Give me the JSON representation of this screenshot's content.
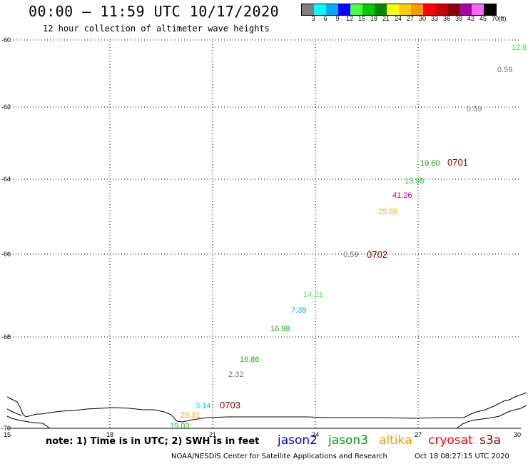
{
  "header": {
    "title": "00:00 – 11:59 UTC 10/17/2020",
    "subtitle": "12 hour collection of altimeter wave heights"
  },
  "colorbar": {
    "unit": "(ft)",
    "ticks": [
      "3",
      "6",
      "9",
      "12",
      "15",
      "18",
      "21",
      "24",
      "27",
      "30",
      "33",
      "36",
      "39",
      "42",
      "45",
      "70"
    ],
    "colors": [
      "#7f7f7f",
      "#00ffff",
      "#00aaff",
      "#0000ff",
      "#44ff44",
      "#00cc00",
      "#008800",
      "#ffff00",
      "#ffcc00",
      "#ff9900",
      "#ff0000",
      "#cc0000",
      "#880000",
      "#aa00aa",
      "#ff66ff",
      "#000000"
    ]
  },
  "map": {
    "lon_range": [
      15,
      30
    ],
    "lat_range": [
      -70,
      -60
    ],
    "lon_ticks": [
      "15",
      "18",
      "21",
      "24",
      "27",
      "30"
    ],
    "lat_ticks": [
      "-60",
      "-62",
      "-64",
      "-66",
      "-68",
      "-70"
    ],
    "grid": "dotted"
  },
  "observations": [
    {
      "value": "12.8",
      "color": "#44dd44"
    },
    {
      "value": "0.59",
      "color": "#777777"
    },
    {
      "value": "0.59",
      "color": "#777777"
    },
    {
      "value": "19.60",
      "color": "#119911"
    },
    {
      "value": "15.98",
      "color": "#22bb22"
    },
    {
      "value": "41.26",
      "color": "#aa00aa"
    },
    {
      "value": "25.89",
      "color": "#ffbb00"
    },
    {
      "value": "0.59",
      "color": "#777777"
    },
    {
      "value": "14.21",
      "color": "#55ee55"
    },
    {
      "value": "7.35",
      "color": "#00aadd"
    },
    {
      "value": "16.98",
      "color": "#22aa22"
    },
    {
      "value": "16.86",
      "color": "#22aa22"
    },
    {
      "value": "2.32",
      "color": "#777777"
    },
    {
      "value": "3.14",
      "color": "#00dddd"
    },
    {
      "value": "29.31",
      "color": "#ff9900"
    },
    {
      "value": "19.03",
      "color": "#22bb22"
    }
  ],
  "pass_labels": [
    "0701",
    "0702",
    "0703"
  ],
  "pass_label_color": "#880000",
  "footer": {
    "note": "note: 1) Time is in UTC; 2) SWH is in feet",
    "legend": [
      {
        "name": "jason2",
        "color": "#0000cc"
      },
      {
        "name": "jason3",
        "color": "#009900"
      },
      {
        "name": "altika",
        "color": "#ff9900"
      },
      {
        "name": "cryosat",
        "color": "#ee0000"
      },
      {
        "name": "s3a",
        "color": "#880000"
      }
    ],
    "credit": "NOAA/NESDIS Center for Satellite Applications and Research",
    "timestamp": "Oct 18 08:27:15 UTC 2020"
  }
}
